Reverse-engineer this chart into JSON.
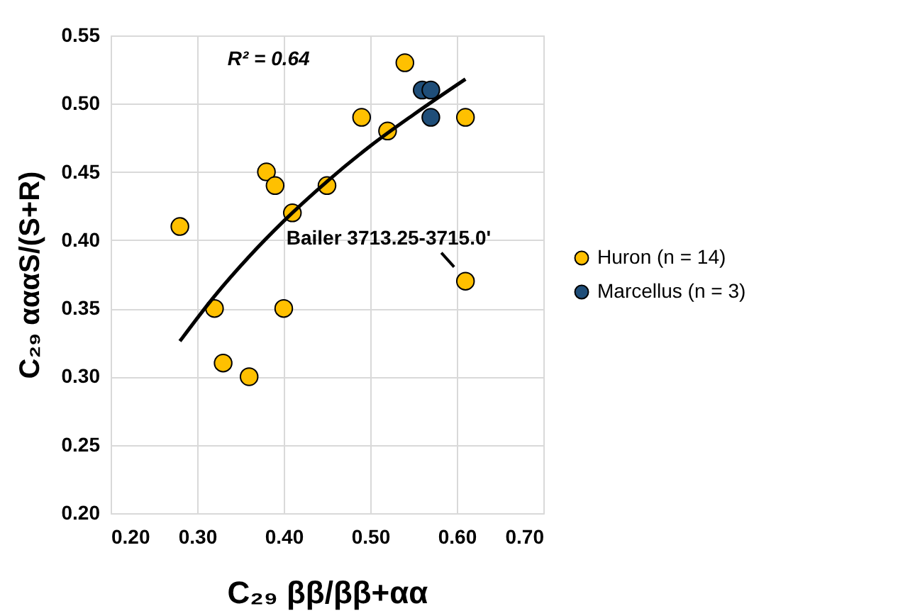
{
  "chart_data": {
    "type": "scatter",
    "xlabel": "C₂₉ ββ/ββ+αα",
    "ylabel": "C₂₉ αααS/(S+R)",
    "xlim": [
      0.2,
      0.7
    ],
    "ylim": [
      0.2,
      0.55
    ],
    "xticks": [
      {
        "value": 0.2,
        "label": "0.20"
      },
      {
        "value": 0.3,
        "label": "0.30"
      },
      {
        "value": 0.4,
        "label": "0.40"
      },
      {
        "value": 0.5,
        "label": "0.50"
      },
      {
        "value": 0.6,
        "label": "0.60"
      },
      {
        "value": 0.7,
        "label": "0.70"
      }
    ],
    "yticks": [
      {
        "value": 0.2,
        "label": "0.20"
      },
      {
        "value": 0.25,
        "label": "0.25"
      },
      {
        "value": 0.3,
        "label": "0.30"
      },
      {
        "value": 0.35,
        "label": "0.35"
      },
      {
        "value": 0.4,
        "label": "0.40"
      },
      {
        "value": 0.45,
        "label": "0.45"
      },
      {
        "value": 0.5,
        "label": "0.50"
      },
      {
        "value": 0.55,
        "label": "0.55"
      }
    ],
    "grid": true,
    "legend": "right",
    "marker": "circle",
    "series": [
      {
        "name": "Huron (n = 14)",
        "color": "#ffc000",
        "x": [
          0.28,
          0.32,
          0.33,
          0.36,
          0.38,
          0.39,
          0.4,
          0.41,
          0.45,
          0.49,
          0.52,
          0.54,
          0.61,
          0.61
        ],
        "values": [
          0.41,
          0.35,
          0.31,
          0.3,
          0.45,
          0.44,
          0.35,
          0.42,
          0.44,
          0.49,
          0.48,
          0.53,
          0.49,
          0.37
        ]
      },
      {
        "name": "Marcellus (n = 3)",
        "color": "#1f4e79",
        "x": [
          0.56,
          0.57,
          0.57
        ],
        "values": [
          0.51,
          0.51,
          0.49
        ]
      },
      {
        "type": "line",
        "marker": "none",
        "color": "#000000",
        "x": [
          0.28,
          0.32,
          0.36,
          0.4,
          0.45,
          0.5,
          0.55,
          0.61
        ],
        "values": [
          0.326,
          0.359,
          0.388,
          0.414,
          0.443,
          0.469,
          0.492,
          0.518
        ]
      }
    ],
    "annotations": [
      "R² = 0.64",
      {
        "text": "Bailer 3713.25-3715.0'",
        "x": 0.61,
        "y": 0.37
      }
    ]
  }
}
